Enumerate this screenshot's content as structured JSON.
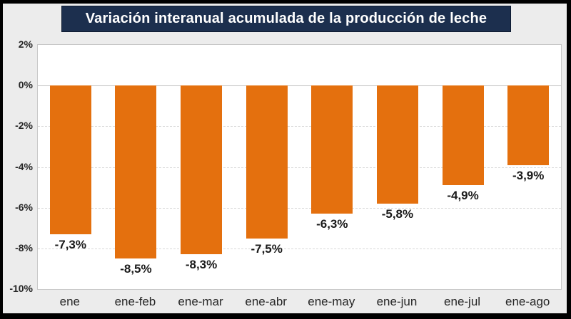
{
  "title": "Variación interanual acumulada de la producción de leche",
  "colors": {
    "bar": "#E4700E",
    "title_background": "#1C2F4E",
    "title_text": "#FFFFFF",
    "canvas_background": "#ECECEC",
    "plot_background": "#FFFFFF",
    "plot_border": "#C8C8C8",
    "gridline": "#D9D9D9",
    "zero_line": "#BFBFBF",
    "frame": "#000000",
    "label_text": "#1A1A1A"
  },
  "chart_data": {
    "type": "bar",
    "title": "Variación interanual acumulada de la producción de leche",
    "categories": [
      "ene",
      "ene-feb",
      "ene-mar",
      "ene-abr",
      "ene-may",
      "ene-jun",
      "ene-jul",
      "ene-ago"
    ],
    "values": [
      -7.3,
      -8.5,
      -8.3,
      -7.5,
      -6.3,
      -5.8,
      -4.9,
      -3.9
    ],
    "value_labels": [
      "-7,3%",
      "-8,5%",
      "-8,3%",
      "-7,5%",
      "-6,3%",
      "-5,8%",
      "-4,9%",
      "-3,9%"
    ],
    "yticks": [
      "2%",
      "0%",
      "-2%",
      "-4%",
      "-6%",
      "-8%",
      "-10%"
    ],
    "ytick_values": [
      2,
      0,
      -2,
      -4,
      -6,
      -8,
      -10
    ],
    "ylim": [
      -10,
      2
    ],
    "xlabel": "",
    "ylabel": "",
    "grid": "horizontal-dashed",
    "legend": "none",
    "bar_color": "#E4700E"
  }
}
